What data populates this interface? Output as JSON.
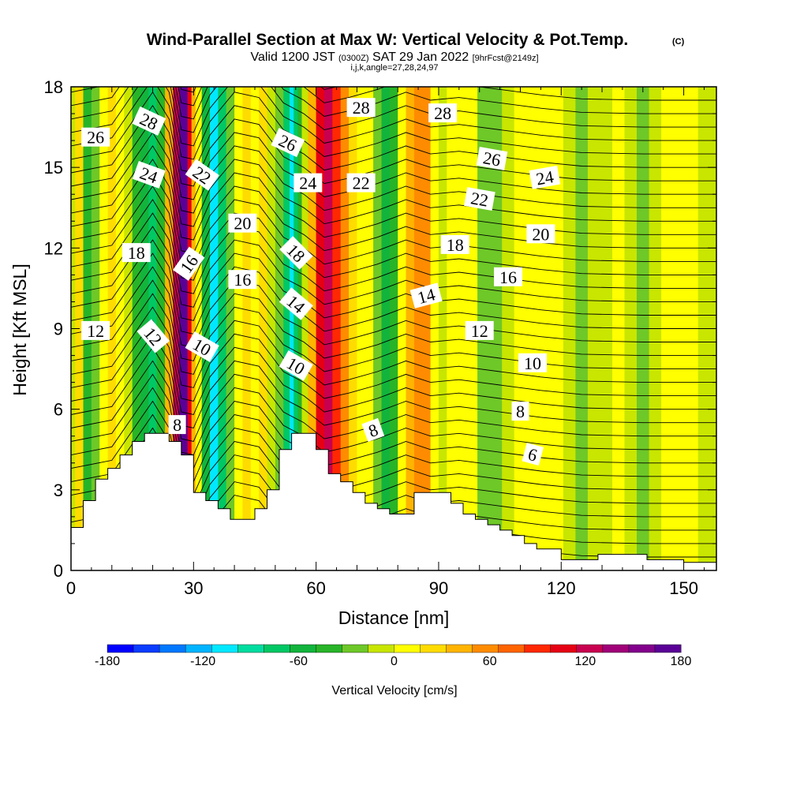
{
  "chart_data": {
    "type": "heatmap",
    "title": "Wind-Parallel Section at Max W: Vertical Velocity & Pot.Temp.",
    "copyright_mark": "(C)",
    "subtitle": {
      "valid": "Valid 1200 JST",
      "utc": "(0300Z)",
      "date": "SAT 29 Jan 2022",
      "forecast": "[9hrFcst@2149z]",
      "indices": "i,j,k,angle=27,28,24,97"
    },
    "xlabel": "Distance [nm]",
    "ylabel": "Height [Kft MSL]",
    "xlim": [
      0,
      158
    ],
    "ylim": [
      0,
      18
    ],
    "x_ticks": [
      0,
      30,
      60,
      90,
      120,
      150
    ],
    "y_ticks": [
      0,
      3,
      6,
      9,
      12,
      15,
      18
    ],
    "colorbar": {
      "label": "Vertical Velocity [cm/s]",
      "range": [
        -180,
        180
      ],
      "tick_values": [
        -180,
        -120,
        -60,
        0,
        60,
        120,
        180
      ],
      "colors": [
        "#0000ff",
        "#0a3cff",
        "#0078ff",
        "#00b4ff",
        "#00e8ff",
        "#00dca0",
        "#00c864",
        "#12b43c",
        "#28b428",
        "#6ec828",
        "#c8e600",
        "#ffff00",
        "#ffdc00",
        "#ffb400",
        "#ff8c00",
        "#ff6400",
        "#ff2800",
        "#e60014",
        "#c80050",
        "#a00078",
        "#82008c",
        "#5a0096"
      ]
    },
    "velocity_columns": [
      {
        "x": 0,
        "w": -10
      },
      {
        "x": 2,
        "w": 20
      },
      {
        "x": 4,
        "w": -45
      },
      {
        "x": 6,
        "w": -20
      },
      {
        "x": 8,
        "w": 15
      },
      {
        "x": 10,
        "w": 25
      },
      {
        "x": 12,
        "w": 5
      },
      {
        "x": 14,
        "w": -15
      },
      {
        "x": 16,
        "w": -40
      },
      {
        "x": 18,
        "w": -60
      },
      {
        "x": 20,
        "w": -70
      },
      {
        "x": 22,
        "w": -40
      },
      {
        "x": 24,
        "w": 40
      },
      {
        "x": 26,
        "w": 130
      },
      {
        "x": 27,
        "w": 175
      },
      {
        "x": 28,
        "w": 170
      },
      {
        "x": 29,
        "w": 110
      },
      {
        "x": 30,
        "w": 40
      },
      {
        "x": 31,
        "w": 5
      },
      {
        "x": 33,
        "w": -60
      },
      {
        "x": 35,
        "w": -100
      },
      {
        "x": 37,
        "w": -70
      },
      {
        "x": 39,
        "w": -30
      },
      {
        "x": 41,
        "w": 0
      },
      {
        "x": 43,
        "w": 20
      },
      {
        "x": 45,
        "w": 10
      },
      {
        "x": 47,
        "w": 20
      },
      {
        "x": 49,
        "w": -10
      },
      {
        "x": 51,
        "w": -30
      },
      {
        "x": 53,
        "w": -80
      },
      {
        "x": 54,
        "w": -110
      },
      {
        "x": 55,
        "w": -80
      },
      {
        "x": 56,
        "w": -40
      },
      {
        "x": 57,
        "w": -10
      },
      {
        "x": 59,
        "w": 40
      },
      {
        "x": 61,
        "w": 100
      },
      {
        "x": 63,
        "w": 120
      },
      {
        "x": 65,
        "w": 90
      },
      {
        "x": 67,
        "w": 50
      },
      {
        "x": 69,
        "w": 20
      },
      {
        "x": 71,
        "w": 10
      },
      {
        "x": 73,
        "w": 15
      },
      {
        "x": 75,
        "w": -20
      },
      {
        "x": 77,
        "w": -50
      },
      {
        "x": 79,
        "w": -40
      },
      {
        "x": 81,
        "w": 0
      },
      {
        "x": 83,
        "w": 40
      },
      {
        "x": 85,
        "w": 60
      },
      {
        "x": 87,
        "w": 50
      },
      {
        "x": 89,
        "w": 10
      },
      {
        "x": 91,
        "w": -10
      },
      {
        "x": 93,
        "w": 5
      },
      {
        "x": 95,
        "w": 10
      },
      {
        "x": 98,
        "w": 0
      },
      {
        "x": 101,
        "w": -20
      },
      {
        "x": 104,
        "w": -30
      },
      {
        "x": 107,
        "w": -15
      },
      {
        "x": 110,
        "w": 0
      },
      {
        "x": 113,
        "w": 10
      },
      {
        "x": 116,
        "w": 5
      },
      {
        "x": 119,
        "w": 0
      },
      {
        "x": 122,
        "w": -10
      },
      {
        "x": 125,
        "w": -20
      },
      {
        "x": 128,
        "w": -15
      },
      {
        "x": 131,
        "w": -5
      },
      {
        "x": 134,
        "w": 0
      },
      {
        "x": 137,
        "w": -10
      },
      {
        "x": 140,
        "w": -20
      },
      {
        "x": 143,
        "w": -10
      },
      {
        "x": 146,
        "w": 0
      },
      {
        "x": 149,
        "w": 5
      },
      {
        "x": 152,
        "w": 0
      },
      {
        "x": 155,
        "w": -10
      },
      {
        "x": 158,
        "w": -10
      }
    ],
    "terrain": [
      [
        0,
        1.6
      ],
      [
        3,
        2.6
      ],
      [
        6,
        3.4
      ],
      [
        9,
        3.8
      ],
      [
        12,
        4.3
      ],
      [
        15,
        4.8
      ],
      [
        18,
        5.1
      ],
      [
        24,
        4.8
      ],
      [
        27,
        4.3
      ],
      [
        30,
        2.9
      ],
      [
        33,
        2.6
      ],
      [
        36,
        2.3
      ],
      [
        39,
        1.9
      ],
      [
        45,
        2.3
      ],
      [
        48,
        3.0
      ],
      [
        51,
        4.5
      ],
      [
        54,
        5.1
      ],
      [
        60,
        4.5
      ],
      [
        63,
        3.6
      ],
      [
        66,
        3.3
      ],
      [
        69,
        2.9
      ],
      [
        72,
        2.5
      ],
      [
        75,
        2.3
      ],
      [
        78,
        2.1
      ],
      [
        84,
        2.9
      ],
      [
        93,
        2.5
      ],
      [
        96,
        2.1
      ],
      [
        99,
        1.9
      ],
      [
        102,
        1.7
      ],
      [
        105,
        1.5
      ],
      [
        108,
        1.3
      ],
      [
        111,
        1.0
      ],
      [
        114,
        0.8
      ],
      [
        120,
        0.4
      ],
      [
        129,
        0.6
      ],
      [
        141,
        0.4
      ],
      [
        150,
        0.3
      ],
      [
        158,
        0.5
      ]
    ],
    "theta_contour_base": [
      [
        0,
        1.3
      ],
      [
        10,
        1.6
      ],
      [
        20,
        3.8
      ],
      [
        24,
        2.8
      ],
      [
        27,
        0.4
      ],
      [
        30,
        0.3
      ],
      [
        34,
        1.7
      ],
      [
        40,
        2.8
      ],
      [
        46,
        2.6
      ],
      [
        52,
        1.4
      ],
      [
        57,
        1.0
      ],
      [
        62,
        0.4
      ],
      [
        68,
        0.6
      ],
      [
        75,
        0.9
      ],
      [
        82,
        1.3
      ],
      [
        88,
        1.0
      ],
      [
        95,
        1.1
      ],
      [
        105,
        0.9
      ],
      [
        115,
        0.7
      ],
      [
        125,
        0.55
      ],
      [
        140,
        0.5
      ],
      [
        158,
        0.5
      ]
    ],
    "theta_contour_spacing_kft": 0.5,
    "theta_contour_count": 36,
    "theta_labels": [
      {
        "text": "26",
        "x": 6,
        "y": 16.1,
        "angle": 0
      },
      {
        "text": "28",
        "x": 19,
        "y": 16.7,
        "angle": 25
      },
      {
        "text": "24",
        "x": 19,
        "y": 14.7,
        "angle": 20
      },
      {
        "text": "22",
        "x": 32,
        "y": 14.7,
        "angle": 35
      },
      {
        "text": "18",
        "x": 16,
        "y": 11.8,
        "angle": 0
      },
      {
        "text": "16",
        "x": 29,
        "y": 11.4,
        "angle": -55
      },
      {
        "text": "20",
        "x": 42,
        "y": 12.9,
        "angle": 0
      },
      {
        "text": "16",
        "x": 42,
        "y": 10.8,
        "angle": 0
      },
      {
        "text": "12",
        "x": 6,
        "y": 8.9,
        "angle": 0
      },
      {
        "text": "12",
        "x": 20,
        "y": 8.7,
        "angle": 50
      },
      {
        "text": "10",
        "x": 32,
        "y": 8.3,
        "angle": 30
      },
      {
        "text": "26",
        "x": 53,
        "y": 15.9,
        "angle": 25
      },
      {
        "text": "18",
        "x": 55,
        "y": 11.8,
        "angle": 45
      },
      {
        "text": "14",
        "x": 55,
        "y": 9.9,
        "angle": 40
      },
      {
        "text": "10",
        "x": 55,
        "y": 7.6,
        "angle": 30
      },
      {
        "text": "24",
        "x": 58,
        "y": 14.4,
        "angle": 0
      },
      {
        "text": "28",
        "x": 71,
        "y": 17.2,
        "angle": 0
      },
      {
        "text": "22",
        "x": 71,
        "y": 14.4,
        "angle": 0
      },
      {
        "text": "8",
        "x": 26,
        "y": 5.4,
        "angle": 0
      },
      {
        "text": "8",
        "x": 74,
        "y": 5.2,
        "angle": -20
      },
      {
        "text": "28",
        "x": 91,
        "y": 17.0,
        "angle": 0
      },
      {
        "text": "26",
        "x": 103,
        "y": 15.3,
        "angle": 10
      },
      {
        "text": "22",
        "x": 100,
        "y": 13.8,
        "angle": 10
      },
      {
        "text": "18",
        "x": 94,
        "y": 12.1,
        "angle": 0
      },
      {
        "text": "14",
        "x": 87,
        "y": 10.2,
        "angle": -15
      },
      {
        "text": "12",
        "x": 100,
        "y": 8.9,
        "angle": 0
      },
      {
        "text": "16",
        "x": 107,
        "y": 10.9,
        "angle": 0
      },
      {
        "text": "24",
        "x": 116,
        "y": 14.6,
        "angle": -10
      },
      {
        "text": "20",
        "x": 115,
        "y": 12.5,
        "angle": 0
      },
      {
        "text": "10",
        "x": 113,
        "y": 7.7,
        "angle": 0
      },
      {
        "text": "8",
        "x": 110,
        "y": 5.9,
        "angle": 0
      },
      {
        "text": "6",
        "x": 113,
        "y": 4.3,
        "angle": 15
      }
    ]
  }
}
